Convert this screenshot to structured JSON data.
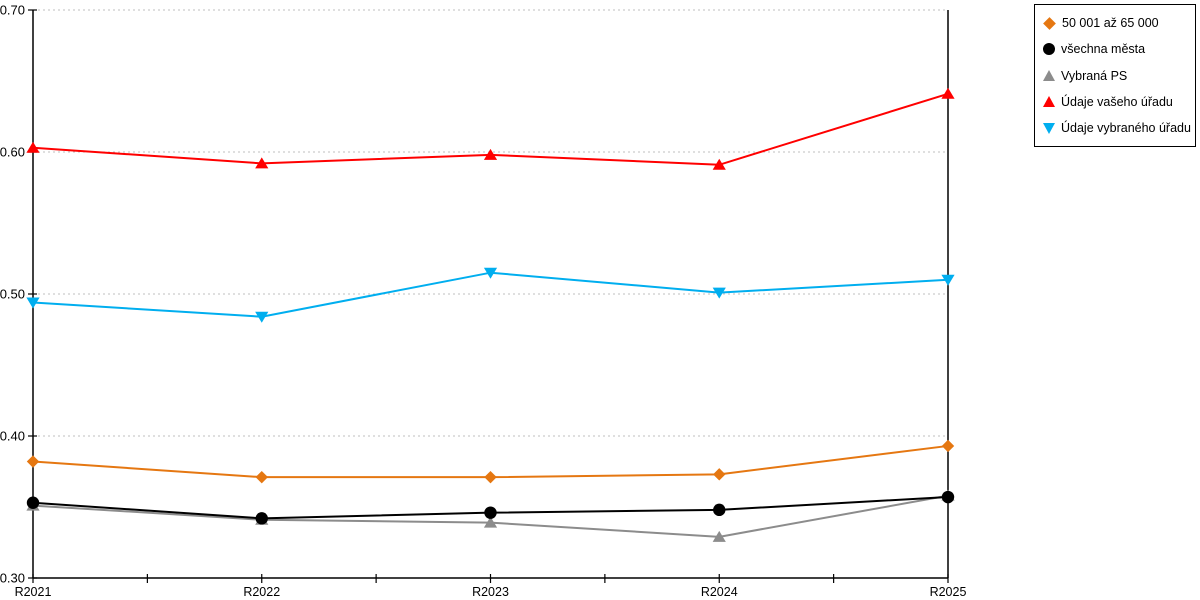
{
  "chart_data": {
    "type": "line",
    "title": "",
    "xlabel": "",
    "ylabel": "",
    "categories": [
      "R2021",
      "R2022",
      "R2023",
      "R2024",
      "R2025"
    ],
    "ylim": [
      0.3,
      0.7
    ],
    "ytick_step": 0.1,
    "ytick_labels": [
      "0.30",
      "0.40",
      "0.50",
      "0.60",
      "0.70"
    ],
    "grid": "horizontal-dotted",
    "gridline_color": "#BFBFBF",
    "axis_color": "#000000",
    "legend_position": "top-right",
    "series": [
      {
        "name": "50 001 až 65 000",
        "marker": "diamond",
        "color": "#E57711",
        "values": [
          0.382,
          0.371,
          0.371,
          0.373,
          0.393
        ]
      },
      {
        "name": "všechna města",
        "marker": "circle",
        "color": "#000000",
        "values": [
          0.353,
          0.342,
          0.346,
          0.348,
          0.357
        ]
      },
      {
        "name": "Vybraná PS",
        "marker": "triangle-up",
        "color": "#8C8C8C",
        "values": [
          0.351,
          0.341,
          0.339,
          0.329,
          0.358
        ]
      },
      {
        "name": "Údaje vašeho úřadu",
        "marker": "triangle-up",
        "color": "#FF0000",
        "values": [
          0.603,
          0.592,
          0.598,
          0.591,
          0.641
        ]
      },
      {
        "name": "Údaje vybraného úřadu",
        "marker": "triangle-down",
        "color": "#00AEEF",
        "values": [
          0.494,
          0.484,
          0.515,
          0.501,
          0.51
        ]
      }
    ]
  }
}
